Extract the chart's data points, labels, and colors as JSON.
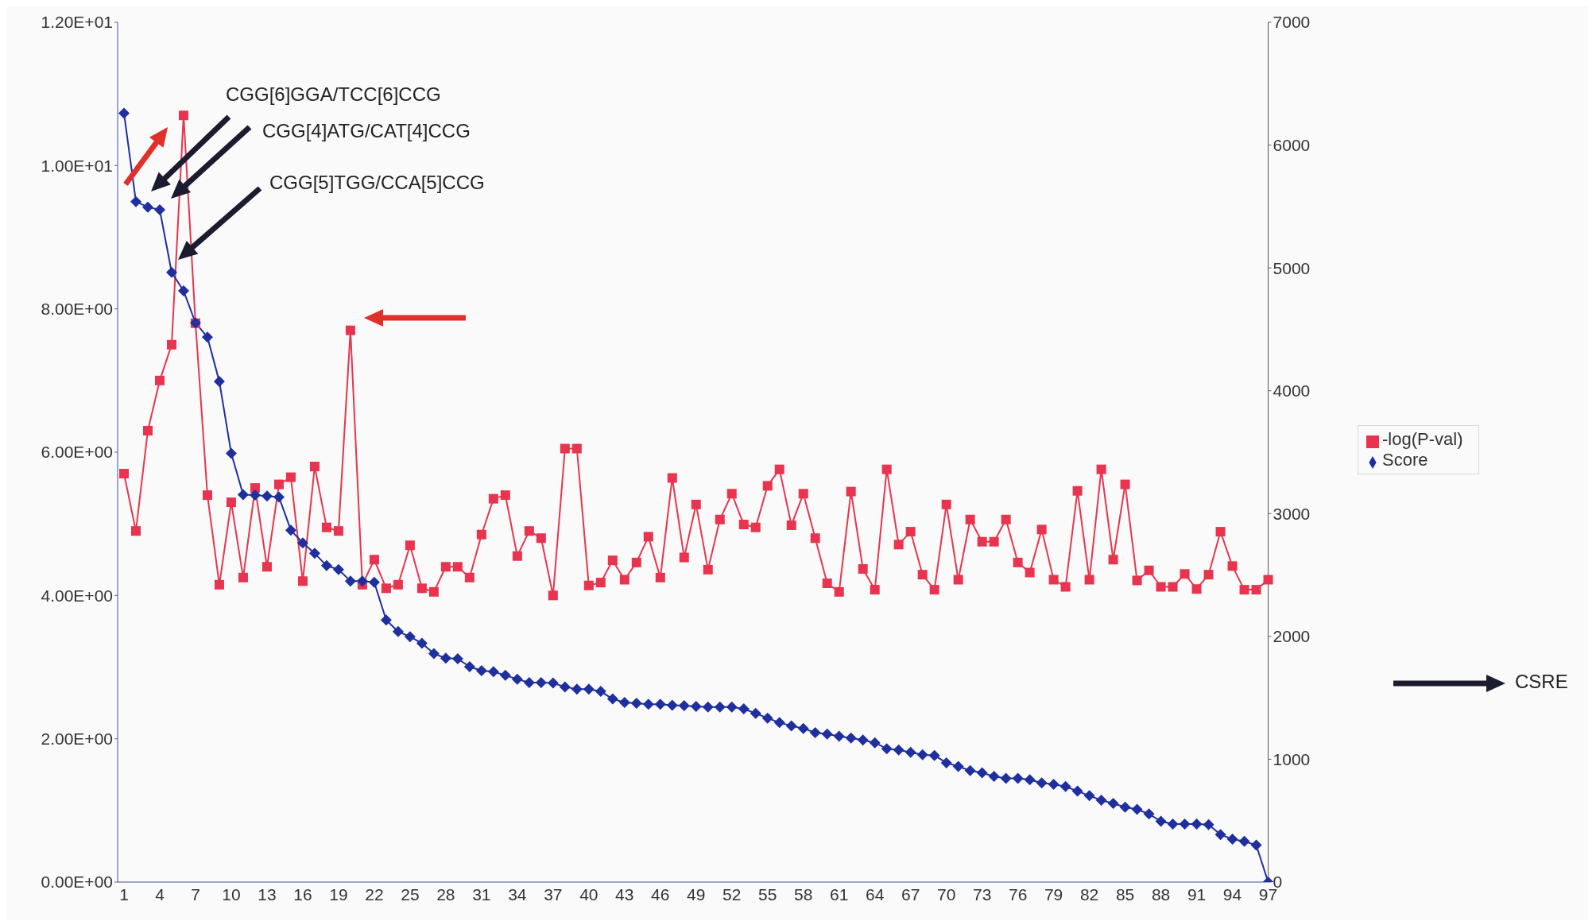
{
  "chart_data": {
    "type": "line",
    "categories": [
      "1",
      null,
      null,
      "4",
      null,
      null,
      "7",
      null,
      null,
      "10",
      null,
      null,
      "13",
      null,
      null,
      "16",
      null,
      null,
      "19",
      null,
      null,
      "22",
      null,
      null,
      "25",
      null,
      null,
      "28",
      null,
      null,
      "31",
      null,
      null,
      "34",
      null,
      null,
      "37",
      null,
      null,
      "40",
      null,
      null,
      "43",
      null,
      null,
      "46",
      null,
      null,
      "49",
      null,
      null,
      "52",
      null,
      null,
      "55",
      null,
      null,
      "58",
      null,
      null,
      "61",
      null,
      null,
      "64",
      null,
      null,
      "67",
      null,
      null,
      "70",
      null,
      null,
      "73",
      null,
      null,
      "76",
      null,
      null,
      "79",
      null,
      null,
      "82",
      null,
      null,
      "85",
      null,
      null,
      "88",
      null,
      null,
      "91",
      null,
      null,
      "94",
      null,
      null,
      "97"
    ],
    "series": [
      {
        "name": "-log(P-val)",
        "color": "#e8344f",
        "marker": "square",
        "values": [
          5.7,
          4.9,
          6.3,
          7.0,
          7.5,
          10.7,
          7.8,
          5.4,
          4.15,
          5.3,
          4.25,
          5.5,
          4.4,
          5.55,
          5.65,
          4.2,
          5.8,
          4.95,
          4.9,
          7.7,
          4.15,
          4.5,
          4.1,
          4.15,
          4.7,
          4.1,
          4.05,
          4.4,
          4.4,
          4.25,
          4.85,
          5.35,
          5.4,
          4.55,
          4.9,
          4.8,
          4.0,
          6.05,
          6.05,
          4.14,
          4.18,
          4.49,
          4.22,
          4.46,
          4.82,
          4.25,
          5.64,
          4.53,
          5.27,
          4.36,
          5.06,
          5.42,
          4.99,
          4.95,
          5.53,
          5.76,
          4.98,
          5.42,
          4.8,
          4.17,
          4.05,
          5.45,
          4.37,
          4.08,
          5.76,
          4.71,
          4.89,
          4.29,
          4.08,
          5.27,
          4.22,
          5.06,
          4.75,
          4.75,
          5.06,
          4.46,
          4.32,
          4.92,
          4.22,
          4.12,
          5.46,
          4.22,
          5.76,
          4.5,
          5.55,
          4.21,
          4.35,
          4.12,
          4.12,
          4.3,
          4.09,
          4.29,
          4.89,
          4.41,
          4.08,
          4.08,
          4.22
        ]
      },
      {
        "name": "Score",
        "color": "#1f2f9e",
        "marker": "diamond",
        "axis": "y2",
        "values": [
          6260,
          5540,
          5495,
          5473,
          4964,
          4813,
          4553,
          4437,
          4075,
          3490,
          3154,
          3150,
          3142,
          3135,
          2865,
          2761,
          2676,
          2576,
          2544,
          2451,
          2451,
          2440,
          2133,
          2039,
          1998,
          1944,
          1860,
          1822,
          1818,
          1753,
          1721,
          1713,
          1683,
          1652,
          1624,
          1624,
          1620,
          1589,
          1571,
          1571,
          1552,
          1491,
          1462,
          1455,
          1447,
          1447,
          1440,
          1436,
          1429,
          1425,
          1425,
          1425,
          1410,
          1373,
          1335,
          1298,
          1272,
          1250,
          1217,
          1205,
          1187,
          1172,
          1157,
          1134,
          1086,
          1075,
          1056,
          1037,
          1031,
          971,
          941,
          908,
          889,
          860,
          844,
          844,
          833,
          807,
          796,
          778,
          740,
          703,
          666,
          640,
          610,
          592,
          554,
          495,
          472,
          472,
          472,
          468,
          387,
          349,
          331,
          301,
          0
        ]
      }
    ],
    "ylim": [
      0,
      12
    ],
    "yticks": [
      {
        "value": 0,
        "label": "0.00E+00"
      },
      {
        "value": 2,
        "label": "2.00E+00"
      },
      {
        "value": 4,
        "label": "4.00E+00"
      },
      {
        "value": 6,
        "label": "6.00E+00"
      },
      {
        "value": 8,
        "label": "8.00E+00"
      },
      {
        "value": 10,
        "label": "1.00E+01"
      },
      {
        "value": 12,
        "label": "1.20E+01"
      }
    ],
    "y2lim": [
      0,
      7000
    ],
    "y2ticks": [
      0,
      1000,
      2000,
      3000,
      4000,
      5000,
      6000,
      7000
    ],
    "annotations": [
      "CGG[6]GGA/TCC[6]CCG",
      "CGG[4]ATG/CAT[4]CCG",
      "CGG[5]TGG/CCA[5]CCG",
      "CSRE"
    ],
    "legend": "right",
    "grid": false,
    "line_style": "solid"
  }
}
